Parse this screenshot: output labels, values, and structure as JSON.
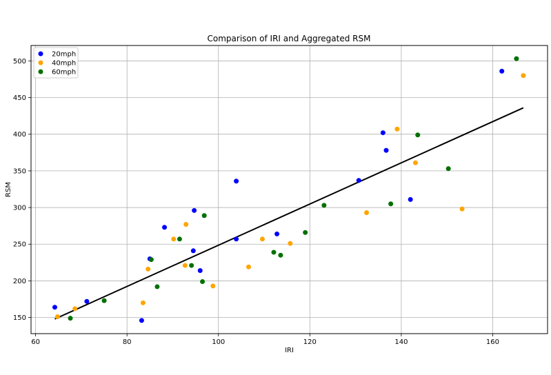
{
  "chart_data": {
    "type": "scatter",
    "title": "Comparison of IRI and Aggregated RSM",
    "xlabel": "IRI",
    "ylabel": "RSM",
    "xlim": [
      59,
      172
    ],
    "ylim": [
      128,
      521
    ],
    "xticks": [
      60,
      80,
      100,
      120,
      140,
      160
    ],
    "yticks": [
      150,
      200,
      250,
      300,
      350,
      400,
      450,
      500
    ],
    "grid": true,
    "legend_position": "top-left",
    "series": [
      {
        "name": "20mph",
        "color": "#0000ff",
        "points": [
          [
            64.2,
            164
          ],
          [
            71.2,
            172
          ],
          [
            83.2,
            146
          ],
          [
            85.0,
            230
          ],
          [
            88.2,
            273
          ],
          [
            94.5,
            241
          ],
          [
            94.7,
            296
          ],
          [
            96.0,
            214
          ],
          [
            103.9,
            336
          ],
          [
            103.9,
            257
          ],
          [
            112.8,
            264
          ],
          [
            130.7,
            337
          ],
          [
            136.0,
            402
          ],
          [
            136.7,
            378
          ],
          [
            142.0,
            311
          ],
          [
            162.0,
            486
          ]
        ]
      },
      {
        "name": "40mph",
        "color": "#ffa500",
        "points": [
          [
            64.8,
            151
          ],
          [
            68.6,
            162
          ],
          [
            83.5,
            170
          ],
          [
            84.6,
            216
          ],
          [
            90.2,
            257
          ],
          [
            92.7,
            221
          ],
          [
            92.9,
            277
          ],
          [
            98.8,
            193
          ],
          [
            106.6,
            219
          ],
          [
            109.6,
            257
          ],
          [
            115.7,
            251
          ],
          [
            132.4,
            293
          ],
          [
            139.1,
            407
          ],
          [
            143.1,
            361
          ],
          [
            153.3,
            298
          ],
          [
            166.7,
            480
          ]
        ]
      },
      {
        "name": "60mph",
        "color": "#007000",
        "points": [
          [
            67.6,
            149
          ],
          [
            75.0,
            173
          ],
          [
            85.3,
            229
          ],
          [
            86.6,
            192
          ],
          [
            91.5,
            257
          ],
          [
            94.1,
            221
          ],
          [
            96.5,
            199
          ],
          [
            96.9,
            289
          ],
          [
            112.1,
            239
          ],
          [
            113.6,
            235
          ],
          [
            119.0,
            266
          ],
          [
            123.1,
            303
          ],
          [
            137.7,
            305
          ],
          [
            143.6,
            399
          ],
          [
            150.3,
            353
          ],
          [
            165.2,
            503
          ]
        ]
      }
    ],
    "regression_line": {
      "color": "#000000",
      "x": [
        64.2,
        166.7
      ],
      "y": [
        148,
        436
      ]
    }
  }
}
